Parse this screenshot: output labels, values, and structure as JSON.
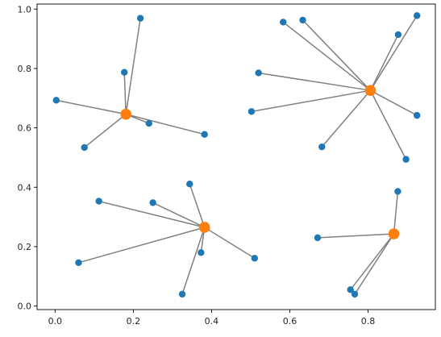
{
  "chart_data": {
    "type": "scatter",
    "xlim": [
      -0.046,
      0.972
    ],
    "ylim": [
      -0.012,
      1.017
    ],
    "x_ticks": [
      0.0,
      0.2,
      0.4,
      0.6,
      0.8
    ],
    "x_tick_labels": [
      "0.0",
      "0.2",
      "0.4",
      "0.6",
      "0.8"
    ],
    "y_ticks": [
      0.0,
      0.2,
      0.4,
      0.6,
      0.8,
      1.0
    ],
    "y_tick_labels": [
      "0.0",
      "0.2",
      "0.4",
      "0.6",
      "0.8",
      "1.0"
    ],
    "grid": false,
    "colors": {
      "points": "#1f77b4",
      "centers": "#ff7f0e",
      "edges": "#808080"
    },
    "series": [
      {
        "points": [
          [
            0.003,
            0.693
          ],
          [
            0.177,
            0.787
          ],
          [
            0.218,
            0.969
          ],
          [
            0.075,
            0.534
          ],
          [
            0.24,
            0.615
          ],
          [
            0.382,
            0.578
          ]
        ],
        "center": [
          0.181,
          0.646
        ]
      },
      {
        "points": [
          [
            0.583,
            0.956
          ],
          [
            0.633,
            0.963
          ],
          [
            0.877,
            0.914
          ],
          [
            0.925,
            0.978
          ],
          [
            0.52,
            0.785
          ],
          [
            0.502,
            0.655
          ],
          [
            0.925,
            0.642
          ],
          [
            0.682,
            0.536
          ],
          [
            0.897,
            0.494
          ]
        ],
        "center": [
          0.806,
          0.726
        ]
      },
      {
        "points": [
          [
            0.112,
            0.353
          ],
          [
            0.25,
            0.348
          ],
          [
            0.344,
            0.411
          ],
          [
            0.06,
            0.146
          ],
          [
            0.373,
            0.18
          ],
          [
            0.51,
            0.161
          ],
          [
            0.325,
            0.04
          ]
        ],
        "center": [
          0.382,
          0.265
        ]
      },
      {
        "points": [
          [
            0.876,
            0.386
          ],
          [
            0.671,
            0.23
          ],
          [
            0.755,
            0.055
          ],
          [
            0.766,
            0.04
          ]
        ],
        "center": [
          0.866,
          0.243
        ]
      }
    ]
  }
}
